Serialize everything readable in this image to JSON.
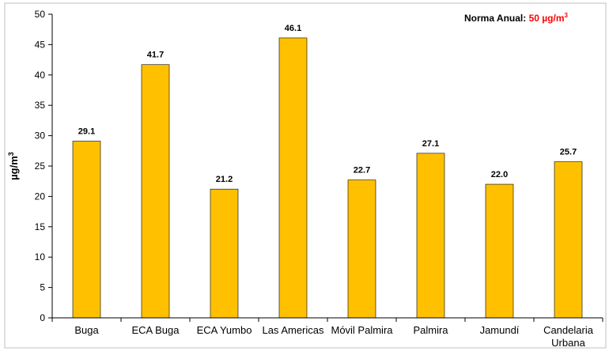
{
  "chart_data": {
    "type": "bar",
    "title": "",
    "xlabel": "",
    "ylabel": "µg/m",
    "ylabel_superscript": "3",
    "ylim": [
      0,
      50
    ],
    "yticks": [
      0,
      5,
      10,
      15,
      20,
      25,
      30,
      35,
      40,
      45,
      50
    ],
    "grid": false,
    "categories": [
      "Buga",
      "ECA Buga",
      "ECA Yumbo",
      "Las Americas",
      "Móvil Palmira",
      "Palmira",
      "Jamundí",
      "Candelaria|Urbana"
    ],
    "values": [
      29.1,
      41.7,
      21.2,
      46.1,
      22.7,
      27.1,
      22.0,
      25.7
    ],
    "value_labels": [
      "29.1",
      "41.7",
      "21.2",
      "46.1",
      "22.7",
      "27.1",
      "22.0",
      "25.7"
    ],
    "bar_color": "#FFC000",
    "annotation": {
      "prefix": "Norma Anual: ",
      "value": "50 µg/m",
      "superscript": "3",
      "value_color": "#FF0000"
    }
  }
}
